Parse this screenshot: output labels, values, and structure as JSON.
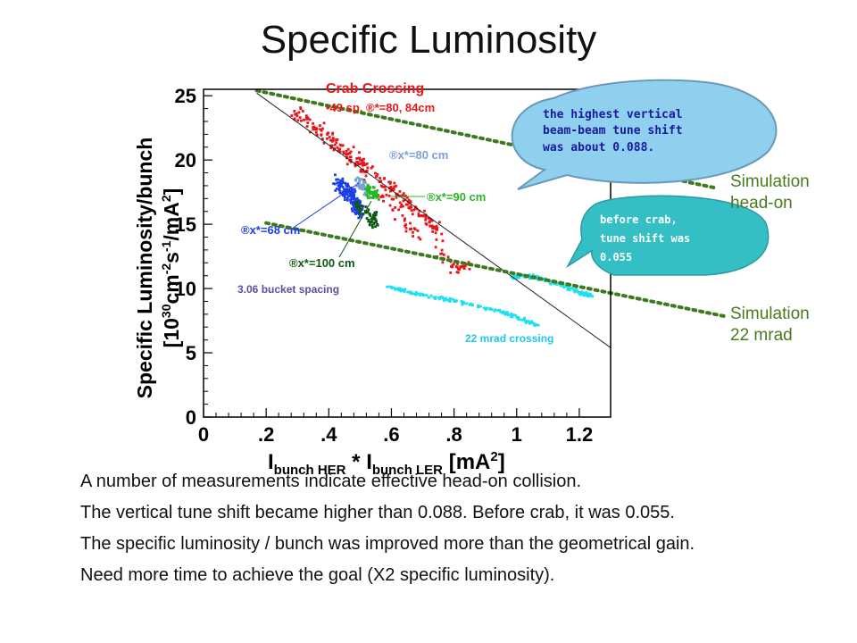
{
  "slide": {
    "title": "Specific Luminosity",
    "bullet_marker": "",
    "bullets": [
      "A number of measurements indicate effective head-on collision.",
      "The vertical tune shift became higher than 0.088. Before crab, it was 0.055.",
      "The specific luminosity / bunch was improved more than the geometrical gain.",
      "Need more time to achieve the goal (X2 specific luminosity)."
    ]
  },
  "callouts": {
    "tune_shift_high": [
      "the highest vertical",
      "beam-beam tune shift",
      "was about 0.088."
    ],
    "tune_shift_before": [
      "before crab,",
      "tune shift was",
      "0.055"
    ],
    "sim_headon": [
      "Simulation",
      "head-on"
    ],
    "sim_22mrad": [
      "Simulation",
      "22 mrad"
    ]
  },
  "chart_data": {
    "type": "scatter",
    "xlabel": "I_bunch HER * I_bunch LER [mA^2]",
    "ylabel": "Specific Luminosity/bunch [10^30 cm^-2 s^-1 /mA^2]",
    "xlim": [
      0,
      1.3
    ],
    "ylim": [
      0,
      25.5
    ],
    "x_ticks": [
      "0",
      ".2",
      ".4",
      ".6",
      ".8",
      "1",
      "1.2"
    ],
    "x_tick_values": [
      0,
      0.2,
      0.4,
      0.6,
      0.8,
      1.0,
      1.2
    ],
    "y_ticks": [
      "0",
      "5",
      "10",
      "15",
      "20",
      "25"
    ],
    "y_tick_values": [
      0,
      5,
      10,
      15,
      20,
      25
    ],
    "annotations": {
      "crab_title": "Crab Crossing",
      "crab_sub": "•49 sp. ®*=80, 84cm",
      "b80": "®x*=80 cm",
      "b90": "®x*=90 cm",
      "b68": "®x*=68 cm",
      "b100": "®x*=100 cm",
      "spacing": "3.06 bucket spacing",
      "mrad": "22 mrad crossing"
    },
    "colors": {
      "crab": "#e8151b",
      "beta68": "#1a3ee8",
      "beta80": "#7aa0d8",
      "beta90": "#22b822",
      "beta100": "#0f5a12",
      "mrad22": "#1ee0f0",
      "sim": "#3c7a1e",
      "fit": "#222222"
    },
    "series": [
      {
        "name": "crab_main",
        "cluster": true,
        "points": [
          [
            0.3,
            23.6
          ],
          [
            0.38,
            22.1
          ],
          [
            0.45,
            20.6
          ],
          [
            0.52,
            19.4
          ],
          [
            0.6,
            17.6
          ],
          [
            0.68,
            16.2
          ],
          [
            0.76,
            14.1
          ]
        ],
        "spread": [
          0.03,
          0.9
        ],
        "count": 240
      },
      {
        "name": "crab_tail",
        "cluster": true,
        "points": [
          [
            0.55,
            17.6
          ],
          [
            0.65,
            15.0
          ],
          [
            0.74,
            13.0
          ],
          [
            0.8,
            11.5
          ],
          [
            0.85,
            11.8
          ]
        ],
        "spread": [
          0.03,
          0.7
        ],
        "count": 60
      },
      {
        "name": "beta68",
        "cluster": true,
        "points": [
          [
            0.42,
            18.5
          ],
          [
            0.47,
            17.2
          ],
          [
            0.5,
            16.0
          ]
        ],
        "spread": [
          0.022,
          1.0
        ],
        "count": 170
      },
      {
        "name": "beta80",
        "cluster": true,
        "points": [
          [
            0.49,
            18.5
          ],
          [
            0.52,
            17.5
          ]
        ],
        "spread": [
          0.015,
          0.8
        ],
        "count": 40
      },
      {
        "name": "beta90",
        "cluster": true,
        "points": [
          [
            0.52,
            17.8
          ],
          [
            0.56,
            17.2
          ]
        ],
        "spread": [
          0.015,
          0.9
        ],
        "count": 45
      },
      {
        "name": "beta100",
        "cluster": true,
        "points": [
          [
            0.49,
            16.5
          ],
          [
            0.53,
            15.6
          ],
          [
            0.55,
            15.2
          ]
        ],
        "spread": [
          0.015,
          0.8
        ],
        "count": 55
      },
      {
        "name": "mrad22",
        "cluster": true,
        "points": [
          [
            0.59,
            10.1
          ],
          [
            0.72,
            9.4
          ],
          [
            0.85,
            8.8
          ],
          [
            0.98,
            8.0
          ],
          [
            1.07,
            7.1
          ]
        ],
        "spread": [
          0.02,
          0.18
        ],
        "count": 150
      },
      {
        "name": "mrad22_upper",
        "cluster": true,
        "points": [
          [
            0.99,
            10.9
          ],
          [
            1.04,
            11.0
          ],
          [
            1.1,
            10.6
          ],
          [
            1.18,
            9.9
          ],
          [
            1.24,
            9.4
          ]
        ],
        "spread": [
          0.02,
          0.22
        ],
        "count": 120
      }
    ],
    "fit_line": [
      [
        0.17,
        25.2
      ],
      [
        1.3,
        5.4
      ]
    ],
    "sim_headon_line": [
      [
        0.17,
        25.4
      ],
      [
        1.64,
        17.8
      ]
    ],
    "sim_22mrad_line": [
      [
        0.2,
        15.1
      ],
      [
        1.32,
        9.8
      ]
    ]
  }
}
